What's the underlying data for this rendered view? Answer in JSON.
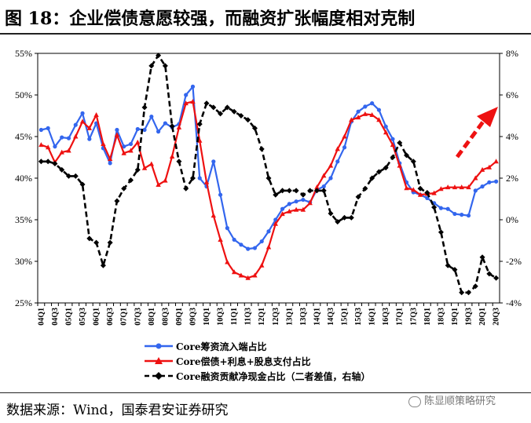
{
  "title": "图 18：企业偿债意愿较强，而融资扩张幅度相对克制",
  "source": "数据来源：Wind，国泰君安证券研究",
  "watermark": "陈显顺策略研究",
  "chart_data": {
    "type": "line",
    "categories": [
      "04Q1",
      "04Q2",
      "04Q3",
      "04Q4",
      "05Q1",
      "05Q2",
      "05Q3",
      "05Q4",
      "06Q1",
      "06Q2",
      "06Q3",
      "06Q4",
      "07Q1",
      "07Q2",
      "07Q3",
      "07Q4",
      "08Q1",
      "08Q2",
      "08Q3",
      "08Q4",
      "09Q1",
      "09Q2",
      "09Q3",
      "09Q4",
      "10Q1",
      "10Q2",
      "10Q3",
      "10Q4",
      "11Q1",
      "11Q2",
      "11Q3",
      "11Q4",
      "12Q1",
      "12Q2",
      "12Q3",
      "12Q4",
      "13Q1",
      "13Q2",
      "13Q3",
      "13Q4",
      "14Q1",
      "14Q2",
      "14Q3",
      "14Q4",
      "15Q1",
      "15Q2",
      "15Q3",
      "15Q4",
      "16Q1",
      "16Q2",
      "16Q3",
      "16Q4",
      "17Q1",
      "17Q2",
      "17Q3",
      "17Q4",
      "18Q1",
      "18Q2",
      "18Q3",
      "18Q4",
      "19Q1",
      "19Q2",
      "19Q3",
      "19Q4",
      "20Q1",
      "20Q2",
      "20Q3"
    ],
    "xtick_labels": [
      "04Q1",
      "04Q3",
      "05Q1",
      "05Q3",
      "06Q1",
      "06Q3",
      "07Q1",
      "07Q3",
      "08Q1",
      "08Q3",
      "09Q1",
      "09Q3",
      "10Q1",
      "10Q3",
      "11Q1",
      "11Q3",
      "12Q1",
      "12Q3",
      "13Q1",
      "13Q3",
      "14Q1",
      "14Q3",
      "15Q1",
      "15Q3",
      "16Q1",
      "16Q3",
      "17Q1",
      "17Q3",
      "18Q1",
      "18Q3",
      "19Q1",
      "19Q3",
      "20Q1",
      "20Q3"
    ],
    "yleft_ticks": [
      "25%",
      "30%",
      "35%",
      "40%",
      "45%",
      "50%",
      "55%"
    ],
    "yright_ticks": [
      "-4%",
      "-2%",
      "0%",
      "2%",
      "4%",
      "6%",
      "8%"
    ],
    "ylim_left": [
      25,
      55
    ],
    "ylim_right": [
      -4,
      8
    ],
    "series": [
      {
        "name": "Core筹资流入端占比",
        "axis": "left",
        "color": "#3366ee",
        "marker": "circle",
        "values": [
          45.8,
          46.0,
          43.8,
          44.9,
          44.8,
          46.4,
          47.8,
          44.7,
          46.6,
          43.6,
          41.8,
          45.8,
          43.8,
          44.1,
          45.9,
          45.8,
          47.4,
          45.6,
          46.6,
          46.1,
          46.5,
          50.0,
          51.0,
          40.0,
          39.0,
          42.0,
          38.0,
          34.0,
          32.6,
          32.0,
          31.5,
          31.6,
          32.4,
          33.6,
          35.0,
          36.3,
          36.9,
          37.2,
          37.4,
          37.1,
          38.6,
          39.0,
          40.0,
          42.0,
          43.7,
          46.8,
          48.0,
          48.6,
          49.0,
          48.2,
          46.2,
          44.7,
          41.8,
          39.5,
          38.3,
          38.0,
          37.6,
          37.0,
          36.4,
          36.3,
          35.7,
          35.6,
          35.5,
          38.5,
          39.0,
          39.5,
          39.6
        ]
      },
      {
        "name": "Core偿债+利息+股息支付占比",
        "axis": "left",
        "color": "#ee1111",
        "marker": "triangle",
        "values": [
          44.0,
          43.7,
          41.9,
          43.1,
          43.3,
          45.0,
          46.8,
          46.0,
          47.6,
          44.1,
          42.3,
          45.2,
          43.0,
          43.3,
          44.3,
          41.2,
          41.7,
          39.2,
          39.7,
          42.6,
          46.1,
          49.0,
          49.2,
          44.5,
          39.5,
          35.5,
          32.6,
          29.9,
          28.7,
          28.3,
          28.0,
          28.3,
          29.5,
          31.7,
          34.5,
          35.7,
          36.0,
          36.2,
          36.2,
          37.0,
          38.9,
          40.3,
          41.5,
          43.5,
          45.0,
          47.0,
          47.3,
          47.7,
          47.6,
          47.0,
          45.5,
          44.0,
          41.5,
          38.8,
          38.6,
          38.0,
          38.1,
          38.2,
          38.7,
          38.9,
          38.9,
          38.9,
          38.9,
          40.0,
          41.0,
          41.3,
          42.0
        ]
      },
      {
        "name": "Core融资贡献净现金占比（二者差值，右轴）",
        "axis": "right",
        "color": "#000000",
        "marker": "diamond",
        "dash": true,
        "values": [
          2.8,
          2.8,
          2.7,
          2.4,
          2.1,
          2.1,
          1.7,
          -0.9,
          -1.1,
          -2.2,
          -1.1,
          0.9,
          1.5,
          1.9,
          2.4,
          5.4,
          7.4,
          7.9,
          7.4,
          4.5,
          2.8,
          1.5,
          2.0,
          4.6,
          5.6,
          5.4,
          5.1,
          5.4,
          5.2,
          5.0,
          4.8,
          4.4,
          3.4,
          2.0,
          1.2,
          1.4,
          1.4,
          1.4,
          1.2,
          1.4,
          1.4,
          1.4,
          0.3,
          -0.1,
          0.1,
          0.1,
          1.1,
          1.5,
          2.0,
          2.3,
          2.5,
          3.0,
          3.7,
          3.1,
          2.8,
          1.5,
          1.3,
          0.6,
          -0.6,
          -2.2,
          -2.4,
          -3.5,
          -3.5,
          -3.2,
          -1.8,
          -2.6,
          -2.8
        ]
      }
    ]
  },
  "annotation": "upward-dashed-red-arrow"
}
